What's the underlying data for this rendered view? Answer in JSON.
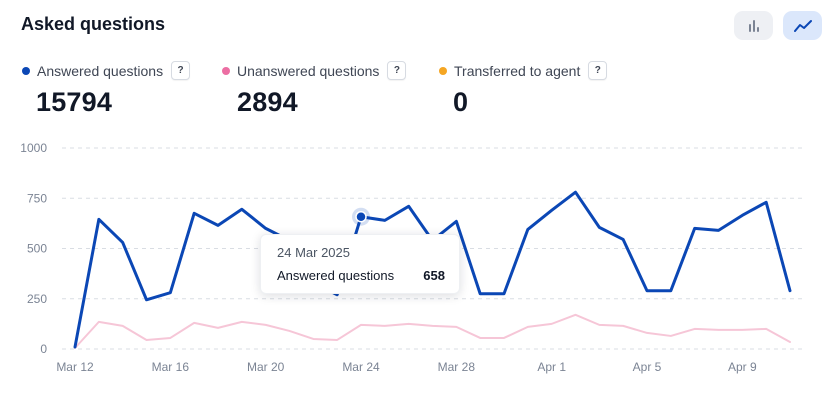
{
  "header": {
    "title": "Asked questions"
  },
  "toggles": {
    "bar_icon": "bar-chart-icon",
    "line_icon": "line-chart-icon"
  },
  "legend": [
    {
      "label": "Answered questions",
      "color": "#0b47b5",
      "value": "15794"
    },
    {
      "label": "Unanswered questions",
      "color": "#ec6ea3",
      "value": "2894"
    },
    {
      "label": "Transferred to agent",
      "color": "#f5a623",
      "value": "0"
    }
  ],
  "help_label": "?",
  "tooltip": {
    "date": "24 Mar 2025",
    "series": "Answered questions",
    "value": "658"
  },
  "chart_data": {
    "type": "line",
    "ylim": [
      0,
      1000
    ],
    "yticks": [
      0,
      250,
      500,
      750,
      1000
    ],
    "x": [
      "Mar 12",
      "Mar 13",
      "Mar 14",
      "Mar 15",
      "Mar 16",
      "Mar 17",
      "Mar 18",
      "Mar 19",
      "Mar 20",
      "Mar 21",
      "Mar 22",
      "Mar 23",
      "Mar 24",
      "Mar 25",
      "Mar 26",
      "Mar 27",
      "Mar 28",
      "Mar 29",
      "Mar 30",
      "Mar 31",
      "Apr 1",
      "Apr 2",
      "Apr 3",
      "Apr 4",
      "Apr 5",
      "Apr 6",
      "Apr 7",
      "Apr 8",
      "Apr 9",
      "Apr 10",
      "Apr 11"
    ],
    "xtick_labels": [
      "Mar 12",
      "Mar 16",
      "Mar 20",
      "Mar 24",
      "Mar 28",
      "Apr 1",
      "Apr 5",
      "Apr 9"
    ],
    "grid": true,
    "series": [
      {
        "name": "Answered questions",
        "color": "#0b47b5",
        "values": [
          10,
          645,
          530,
          245,
          280,
          675,
          615,
          695,
          600,
          540,
          330,
          270,
          658,
          640,
          710,
          540,
          635,
          275,
          275,
          595,
          690,
          780,
          605,
          545,
          290,
          290,
          600,
          590,
          665,
          730,
          290
        ]
      },
      {
        "name": "Unanswered questions",
        "color": "#f6c6d7",
        "values": [
          5,
          135,
          115,
          45,
          55,
          130,
          105,
          135,
          120,
          90,
          50,
          45,
          120,
          115,
          125,
          115,
          110,
          55,
          55,
          110,
          125,
          170,
          120,
          115,
          80,
          65,
          100,
          95,
          95,
          100,
          35
        ]
      }
    ],
    "highlight_index": 12
  }
}
